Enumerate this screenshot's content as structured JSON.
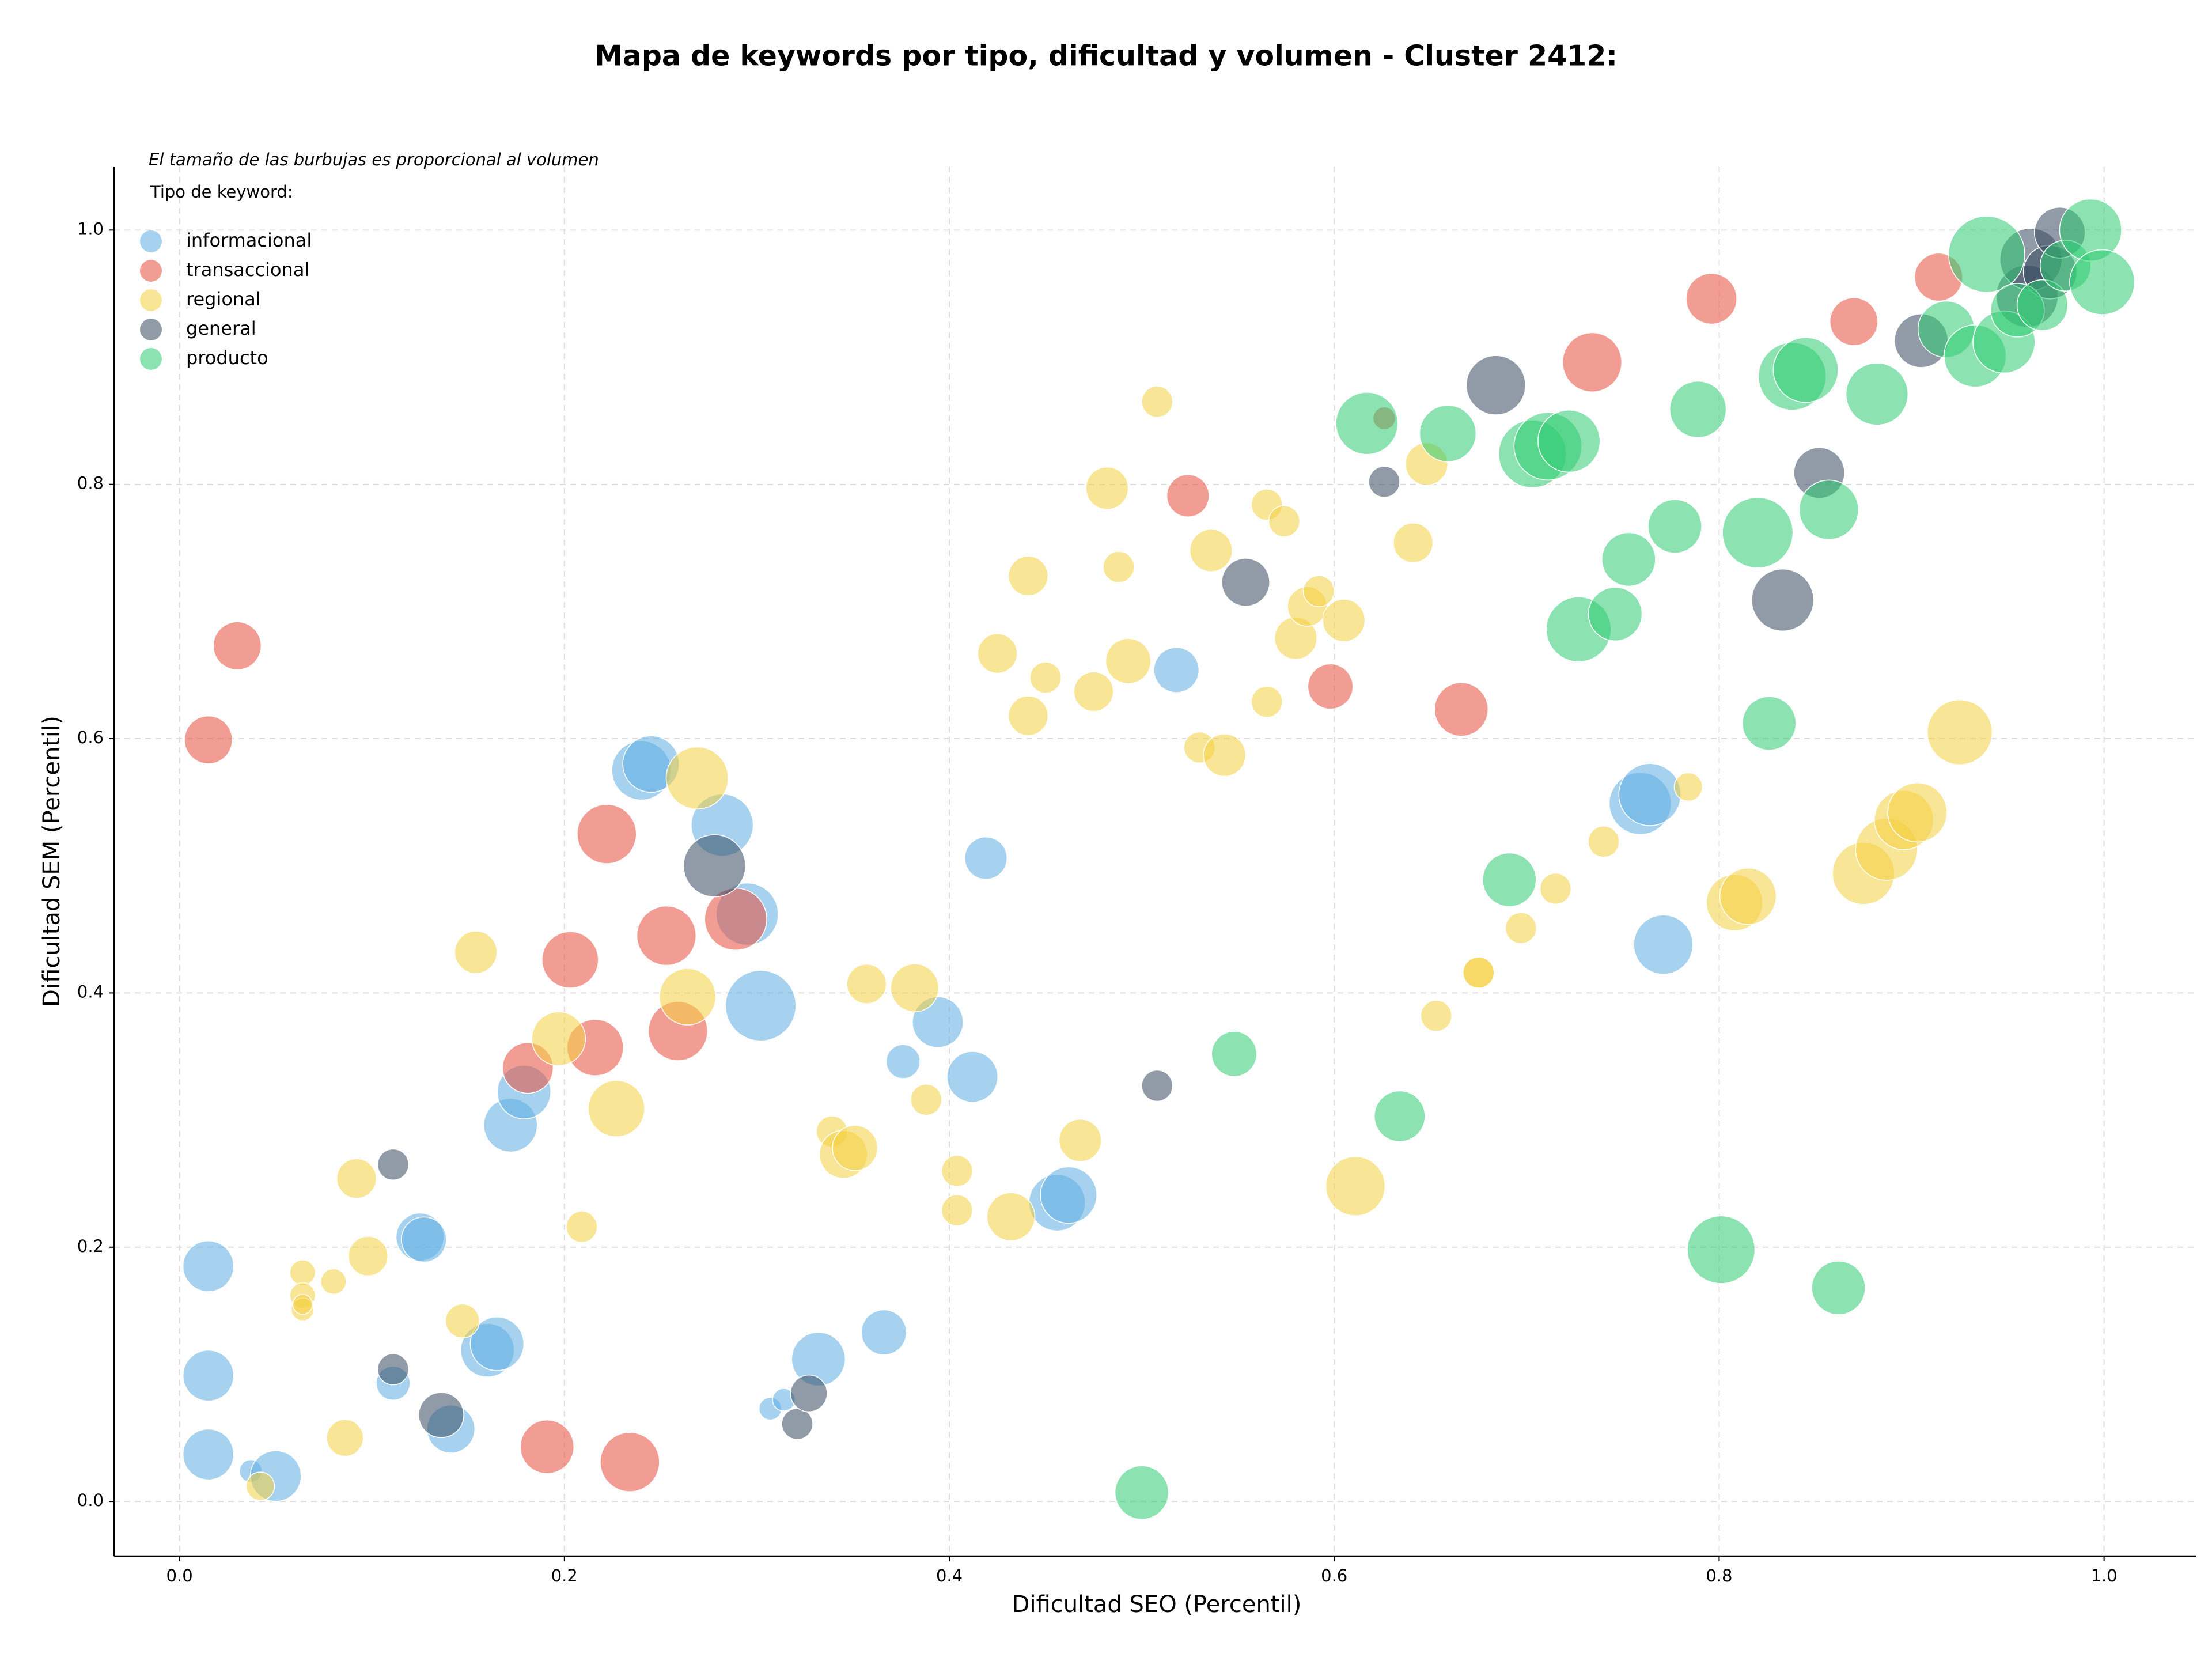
{
  "chart_data": {
    "type": "scatter",
    "title": "Mapa de keywords por tipo, dificultad y volumen - Cluster 2412:",
    "subtitle": "El tamaño de las burbujas es proporcional al volumen",
    "legend_title": "Tipo de keyword:",
    "x_label": "Dificultad SEO (Percentil)",
    "y_label": "Dificultad SEM (Percentil)",
    "xlim": [
      -0.034,
      1.048
    ],
    "ylim": [
      -0.043,
      1.05
    ],
    "xticks": [
      {
        "value": 0,
        "label": "0.0"
      },
      0.2,
      0.4,
      0.6,
      0.8,
      {
        "value": 1,
        "label": "1.0"
      }
    ],
    "yticks": [
      {
        "value": 0,
        "label": "0.0"
      },
      0.2,
      0.4,
      0.6,
      0.8,
      {
        "value": 1,
        "label": "1.0"
      }
    ],
    "grid": true,
    "legend": "upper left",
    "series": [
      {
        "name": "informacional",
        "color": "#5dade2",
        "x": [
          0.015,
          0.015,
          0.015,
          0.037,
          0.05,
          0.111,
          0.125,
          0.127,
          0.141,
          0.16,
          0.165,
          0.172,
          0.179,
          0.24,
          0.245,
          0.282,
          0.295,
          0.302,
          0.307,
          0.314,
          0.332,
          0.366,
          0.376,
          0.394,
          0.412,
          0.419,
          0.456,
          0.462,
          0.518,
          0.759,
          0.764,
          0.771
        ],
        "y": [
          0.185,
          0.099,
          0.037,
          0.024,
          0.02,
          0.093,
          0.208,
          0.206,
          0.057,
          0.119,
          0.124,
          0.296,
          0.322,
          0.575,
          0.58,
          0.532,
          0.462,
          0.39,
          0.073,
          0.08,
          0.112,
          0.133,
          0.346,
          0.377,
          0.334,
          0.506,
          0.235,
          0.241,
          0.654,
          0.549,
          0.556,
          0.438
        ],
        "sizes": [
          324,
          324,
          324,
          64,
          324,
          144,
          289,
          256,
          289,
          361,
          361,
          361,
          361,
          441,
          400,
          484,
          484,
          625,
          64,
          64,
          361,
          256,
          144,
          324,
          324,
          225,
          400,
          400,
          256,
          484,
          484,
          441
        ]
      },
      {
        "name": "transaccional",
        "color": "#e74c3c",
        "x": [
          0.015,
          0.03,
          0.181,
          0.191,
          0.203,
          0.216,
          0.222,
          0.234,
          0.253,
          0.259,
          0.289,
          0.524,
          0.598,
          0.626,
          0.666,
          0.734,
          0.796,
          0.87,
          0.914
        ],
        "y": [
          0.599,
          0.673,
          0.341,
          0.043,
          0.426,
          0.357,
          0.525,
          0.031,
          0.445,
          0.37,
          0.458,
          0.791,
          0.641,
          0.852,
          0.623,
          0.896,
          0.946,
          0.928,
          0.963
        ],
        "sizes": [
          289,
          289,
          324,
          361,
          400,
          400,
          441,
          441,
          441,
          441,
          484,
          225,
          256,
          64,
          361,
          441,
          324,
          289,
          289
        ]
      },
      {
        "name": "regional",
        "color": "#f4d03f",
        "x": [
          0.042,
          0.064,
          0.064,
          0.064,
          0.064,
          0.08,
          0.086,
          0.092,
          0.098,
          0.147,
          0.154,
          0.197,
          0.209,
          0.227,
          0.264,
          0.269,
          0.339,
          0.345,
          0.351,
          0.357,
          0.382,
          0.388,
          0.404,
          0.404,
          0.425,
          0.432,
          0.441,
          0.441,
          0.45,
          0.468,
          0.475,
          0.482,
          0.488,
          0.493,
          0.508,
          0.53,
          0.536,
          0.543,
          0.565,
          0.565,
          0.574,
          0.58,
          0.586,
          0.592,
          0.605,
          0.611,
          0.641,
          0.648,
          0.653,
          0.675,
          0.675,
          0.697,
          0.715,
          0.74,
          0.784,
          0.808,
          0.815,
          0.875,
          0.887,
          0.896,
          0.903,
          0.925
        ],
        "y": [
          0.012,
          0.18,
          0.162,
          0.151,
          0.155,
          0.173,
          0.05,
          0.254,
          0.193,
          0.142,
          0.432,
          0.364,
          0.216,
          0.309,
          0.397,
          0.569,
          0.291,
          0.273,
          0.278,
          0.407,
          0.404,
          0.316,
          0.26,
          0.229,
          0.667,
          0.224,
          0.618,
          0.728,
          0.648,
          0.284,
          0.637,
          0.797,
          0.735,
          0.661,
          0.865,
          0.593,
          0.748,
          0.587,
          0.784,
          0.629,
          0.771,
          0.679,
          0.704,
          0.716,
          0.693,
          0.248,
          0.754,
          0.816,
          0.382,
          0.416,
          0.416,
          0.451,
          0.482,
          0.519,
          0.562,
          0.471,
          0.476,
          0.494,
          0.513,
          0.536,
          0.542,
          0.605
        ],
        "sizes": [
          100,
          81,
          81,
          64,
          49,
          81,
          169,
          196,
          196,
          144,
          225,
          361,
          121,
          400,
          400,
          484,
          121,
          289,
          256,
          196,
          289,
          121,
          121,
          121,
          196,
          289,
          196,
          196,
          121,
          225,
          196,
          225,
          121,
          256,
          121,
          121,
          225,
          225,
          121,
          121,
          121,
          225,
          196,
          121,
          225,
          441,
          196,
          225,
          121,
          121,
          121,
          121,
          121,
          121,
          100,
          400,
          400,
          484,
          484,
          441,
          441,
          529
        ]
      },
      {
        "name": "general",
        "color": "#34495e",
        "x": [
          0.111,
          0.111,
          0.136,
          0.278,
          0.321,
          0.327,
          0.508,
          0.554,
          0.626,
          0.684,
          0.833,
          0.852,
          0.905,
          0.96,
          0.962,
          0.972,
          0.977
        ],
        "y": [
          0.265,
          0.104,
          0.068,
          0.5,
          0.061,
          0.085,
          0.327,
          0.723,
          0.802,
          0.878,
          0.709,
          0.809,
          0.913,
          0.948,
          0.977,
          0.967,
          0.998
        ],
        "sizes": [
          121,
          121,
          256,
          484,
          121,
          169,
          121,
          289,
          121,
          441,
          484,
          324,
          361,
          484,
          484,
          361,
          324
        ]
      },
      {
        "name": "producto",
        "color": "#2ecc71",
        "x": [
          0.5,
          0.548,
          0.634,
          0.617,
          0.659,
          0.691,
          0.703,
          0.711,
          0.722,
          0.727,
          0.746,
          0.753,
          0.777,
          0.789,
          0.801,
          0.82,
          0.826,
          0.838,
          0.845,
          0.857,
          0.862,
          0.882,
          0.918,
          0.933,
          0.939,
          0.948,
          0.955,
          0.968,
          0.98,
          0.993,
          0.999
        ],
        "y": [
          0.007,
          0.352,
          0.303,
          0.848,
          0.84,
          0.489,
          0.824,
          0.83,
          0.834,
          0.686,
          0.698,
          0.741,
          0.767,
          0.859,
          0.198,
          0.762,
          0.612,
          0.885,
          0.89,
          0.78,
          0.168,
          0.871,
          0.922,
          0.901,
          0.981,
          0.912,
          0.937,
          0.941,
          0.972,
          1.0,
          0.959
        ],
        "sizes": [
          361,
          256,
          324,
          484,
          400,
          361,
          576,
          576,
          484,
          529,
          361,
          361,
          361,
          400,
          576,
          625,
          361,
          576,
          529,
          441,
          361,
          484,
          400,
          484,
          729,
          484,
          361,
          324,
          324,
          484,
          529
        ]
      }
    ]
  }
}
